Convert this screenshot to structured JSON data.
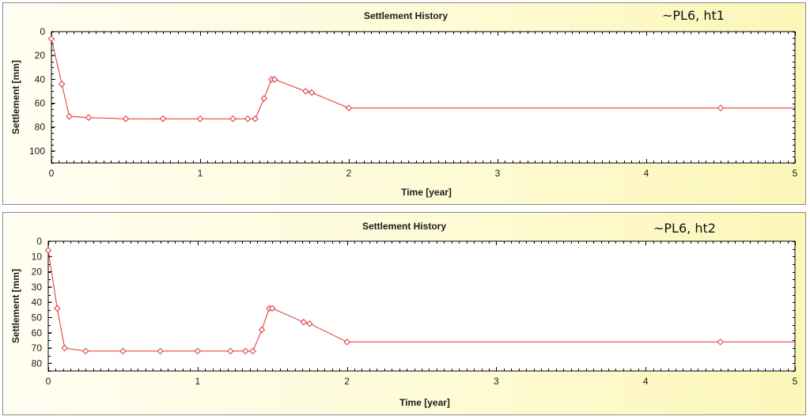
{
  "chart_data": [
    {
      "type": "line",
      "title": "Settlement History",
      "annotation": "~PL6, ht1",
      "xlabel": "Time [year]",
      "ylabel": "Settlement [mm]",
      "xlim": [
        0,
        5
      ],
      "ylim": [
        110,
        0
      ],
      "y_inverted": true,
      "x_ticks": [
        0,
        1,
        2,
        3,
        4,
        5
      ],
      "y_ticks": [
        0,
        20,
        40,
        60,
        80,
        100
      ],
      "grid": false,
      "line_color": "#e03030",
      "marker": "diamond",
      "series": [
        {
          "x": [
            0,
            0.07,
            0.12,
            0.25,
            0.5,
            0.75,
            1.0,
            1.22,
            1.32,
            1.37,
            1.43,
            1.48,
            1.5,
            1.71,
            1.75,
            2.0,
            4.5,
            5.0
          ],
          "y": [
            6,
            44,
            71,
            72,
            73,
            73,
            73,
            73,
            73,
            73,
            56,
            40,
            40,
            50,
            51,
            64,
            64,
            64
          ],
          "markers": [
            true,
            true,
            true,
            true,
            true,
            true,
            true,
            true,
            true,
            true,
            true,
            true,
            true,
            true,
            true,
            true,
            true,
            false
          ]
        }
      ]
    },
    {
      "type": "line",
      "title": "Settlement History",
      "annotation": "~PL6, ht2",
      "xlabel": "Time [year]",
      "ylabel": "Settlement [mm]",
      "xlim": [
        0,
        5
      ],
      "ylim": [
        85,
        0
      ],
      "y_inverted": true,
      "x_ticks": [
        0,
        1,
        2,
        3,
        4,
        5
      ],
      "y_ticks": [
        0,
        10,
        20,
        30,
        40,
        50,
        60,
        70,
        80
      ],
      "grid": false,
      "line_color": "#e03030",
      "marker": "diamond",
      "series": [
        {
          "x": [
            0,
            0.06,
            0.11,
            0.25,
            0.5,
            0.75,
            1.0,
            1.22,
            1.32,
            1.37,
            1.43,
            1.48,
            1.5,
            1.71,
            1.75,
            2.0,
            4.5,
            5.0
          ],
          "y": [
            6,
            44,
            70,
            72,
            72,
            72,
            72,
            72,
            72,
            72,
            58,
            44,
            44,
            53,
            54,
            66,
            66,
            66
          ],
          "markers": [
            true,
            true,
            true,
            true,
            true,
            true,
            true,
            true,
            true,
            true,
            true,
            true,
            true,
            true,
            true,
            true,
            true,
            false
          ]
        }
      ]
    }
  ]
}
